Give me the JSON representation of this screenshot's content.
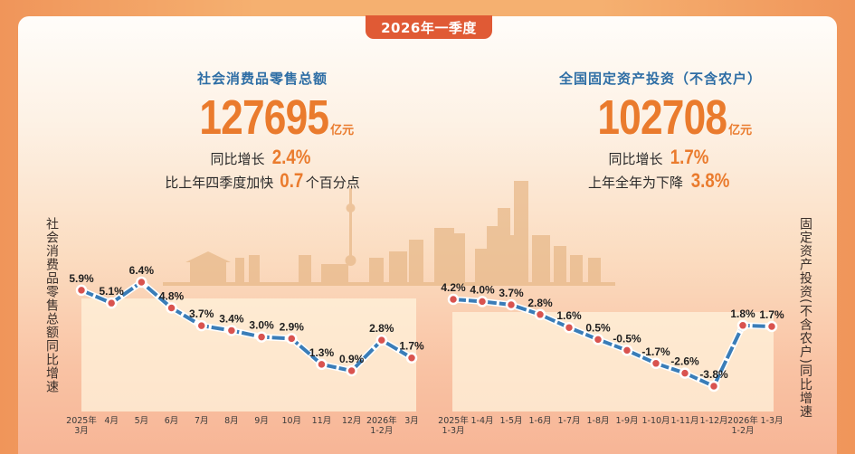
{
  "header": {
    "badge": "2026年一季度"
  },
  "retail": {
    "title": "社会消费品零售总额",
    "value": "127695",
    "unit": "亿元",
    "line1_prefix": "同比增长",
    "line1_value": "2.4%",
    "line2_prefix": "比上年四季度加快",
    "line2_value": "0.7",
    "line2_suffix": "个百分点",
    "axis_title": "社会消费品零售总额同比增速"
  },
  "investment": {
    "title": "全国固定资产投资（不含农户）",
    "value": "102708",
    "unit": "亿元",
    "line1_prefix": "同比增长",
    "line1_value": "1.7%",
    "line2_prefix": "上年全年为下降",
    "line2_value": "3.8%",
    "axis_title": "固定资产投资(不含农户)同比增速"
  },
  "colors": {
    "line": "#3a7db8",
    "marker": "#d9534f",
    "accent": "#ea7b2d",
    "title_blue": "#2e6ea5",
    "badge": "#e05a35"
  },
  "chart_data": [
    {
      "type": "line",
      "title": "社会消费品零售总额同比增速",
      "ylabel": "社会消费品零售总额同比增速",
      "xlabel": "",
      "categories": [
        "2025年3月",
        "4月",
        "5月",
        "6月",
        "7月",
        "8月",
        "9月",
        "10月",
        "11月",
        "12月",
        "2026年1-2月",
        "3月"
      ],
      "category_lines": [
        [
          "2025年",
          "3月"
        ],
        [
          "4月"
        ],
        [
          "5月"
        ],
        [
          "6月"
        ],
        [
          "7月"
        ],
        [
          "8月"
        ],
        [
          "9月"
        ],
        [
          "10月"
        ],
        [
          "11月"
        ],
        [
          "12月"
        ],
        [
          "2026年",
          "1-2月"
        ],
        [
          "3月"
        ]
      ],
      "values": [
        5.9,
        5.1,
        6.4,
        4.8,
        3.7,
        3.4,
        3.0,
        2.9,
        1.3,
        0.9,
        2.8,
        1.7
      ],
      "labels": [
        "5.9%",
        "5.1%",
        "6.4%",
        "4.8%",
        "3.7%",
        "3.4%",
        "3.0%",
        "2.9%",
        "1.3%",
        "0.9%",
        "2.8%",
        "1.7%"
      ],
      "unit": "%",
      "grid": false,
      "legend": "none"
    },
    {
      "type": "line",
      "title": "固定资产投资(不含农户)同比增速",
      "ylabel": "固定资产投资(不含农户)同比增速",
      "xlabel": "",
      "categories": [
        "2025年1-3月",
        "1-4月",
        "1-5月",
        "1-6月",
        "1-7月",
        "1-8月",
        "1-9月",
        "1-10月",
        "1-11月",
        "1-12月",
        "2026年1-2月",
        "1-3月"
      ],
      "category_lines": [
        [
          "2025年",
          "1-3月"
        ],
        [
          "1-4月"
        ],
        [
          "1-5月"
        ],
        [
          "1-6月"
        ],
        [
          "1-7月"
        ],
        [
          "1-8月"
        ],
        [
          "1-9月"
        ],
        [
          "1-10月"
        ],
        [
          "1-11月"
        ],
        [
          "1-12月"
        ],
        [
          "2026年",
          "1-2月"
        ],
        [
          "1-3月"
        ]
      ],
      "values": [
        4.2,
        4.0,
        3.7,
        2.8,
        1.6,
        0.5,
        -0.5,
        -1.7,
        -2.6,
        -3.8,
        1.8,
        1.7
      ],
      "labels": [
        "4.2%",
        "4.0%",
        "3.7%",
        "2.8%",
        "1.6%",
        "0.5%",
        "-0.5%",
        "-1.7%",
        "-2.6%",
        "-3.8%",
        "1.8%",
        "1.7%"
      ],
      "unit": "%",
      "grid": false,
      "legend": "none"
    }
  ]
}
